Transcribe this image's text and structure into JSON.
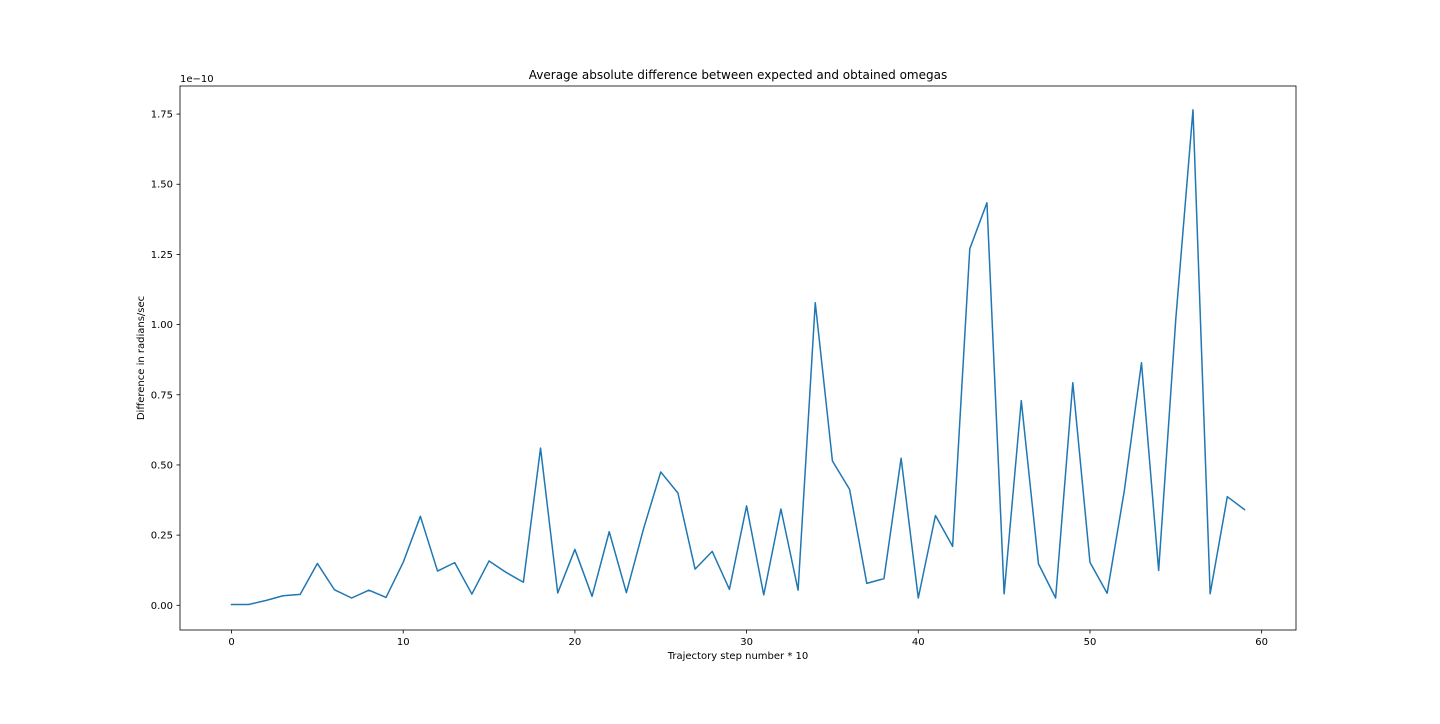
{
  "chart_data": {
    "type": "line",
    "title": "Average absolute difference between expected and obtained omegas",
    "xlabel": "Trajectory step number * 10",
    "ylabel": "Difference in radians/sec",
    "y_offset_label": "1e−10",
    "y_scale_note": "values shown in units of 1e-10",
    "xlim": [
      -3,
      62
    ],
    "ylim": [
      -0.088,
      1.85
    ],
    "x_ticks": [
      0,
      10,
      20,
      30,
      40,
      50,
      60
    ],
    "x_tick_labels": [
      "0",
      "10",
      "20",
      "30",
      "40",
      "50",
      "60"
    ],
    "y_ticks": [
      0.0,
      0.25,
      0.5,
      0.75,
      1.0,
      1.25,
      1.5,
      1.75
    ],
    "y_tick_labels": [
      "0.00",
      "0.25",
      "0.50",
      "0.75",
      "1.00",
      "1.25",
      "1.50",
      "1.75"
    ],
    "grid": false,
    "legend": false,
    "color": "#1f77b4",
    "x": [
      0,
      1,
      2,
      3,
      4,
      5,
      6,
      7,
      8,
      9,
      10,
      11,
      12,
      13,
      14,
      15,
      16,
      17,
      18,
      19,
      20,
      21,
      22,
      23,
      24,
      25,
      26,
      27,
      28,
      29,
      30,
      31,
      32,
      33,
      34,
      35,
      36,
      37,
      38,
      39,
      40,
      41,
      42,
      43,
      44,
      45,
      46,
      47,
      48,
      49,
      50,
      51,
      52,
      53,
      54,
      55,
      56,
      57,
      58,
      59
    ],
    "series": [
      {
        "values": [
          0.003,
          0.003,
          0.017,
          0.034,
          0.039,
          0.149,
          0.055,
          0.026,
          0.054,
          0.028,
          0.153,
          0.317,
          0.122,
          0.152,
          0.04,
          0.158,
          0.117,
          0.082,
          0.56,
          0.044,
          0.199,
          0.032,
          0.262,
          0.045,
          0.273,
          0.475,
          0.4,
          0.129,
          0.192,
          0.057,
          0.354,
          0.037,
          0.343,
          0.054,
          1.078,
          0.514,
          0.413,
          0.078,
          0.095,
          0.524,
          0.026,
          0.32,
          0.21,
          1.27,
          1.434,
          0.041,
          0.729,
          0.148,
          0.026,
          0.793,
          0.153,
          0.043,
          0.408,
          0.864,
          0.124,
          1.021,
          1.765,
          0.041,
          0.387,
          0.341
        ]
      }
    ]
  }
}
